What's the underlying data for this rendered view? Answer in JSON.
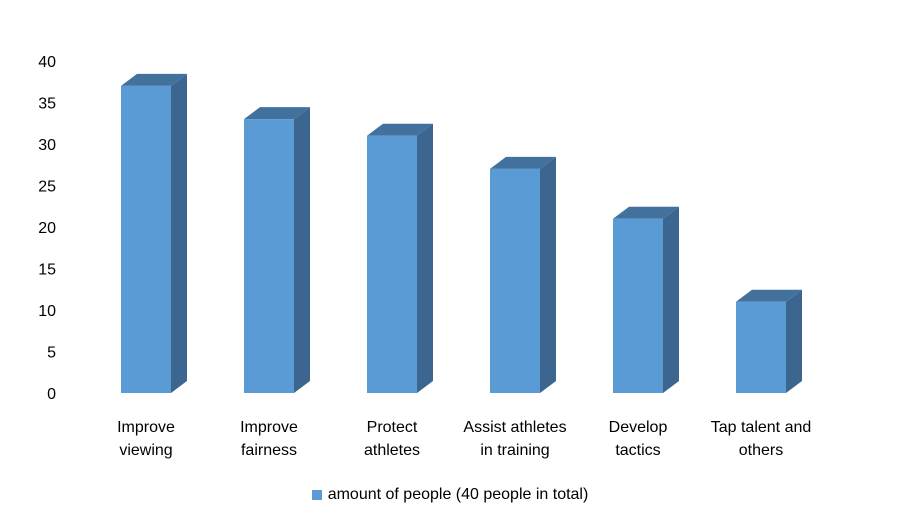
{
  "chart_data": {
    "type": "bar",
    "style": "3d-column",
    "categories": [
      [
        "Improve",
        "viewing"
      ],
      [
        "Improve",
        "fairness"
      ],
      [
        "Protect",
        "athletes"
      ],
      [
        "Assist athletes",
        "in training"
      ],
      [
        "Develop",
        "tactics"
      ],
      [
        "Tap talent and",
        "others"
      ]
    ],
    "series": [
      {
        "name": "amount of people (40 people in total)",
        "values": [
          37,
          33,
          31,
          27,
          21,
          11
        ]
      }
    ],
    "yticks": [
      0,
      5,
      10,
      15,
      20,
      25,
      30,
      35,
      40
    ],
    "ylim": [
      0,
      40
    ],
    "grid": false,
    "legend_position": "bottom",
    "colors": {
      "front": "#5B9BD5",
      "side": "#3C6690",
      "top": "#41719C"
    }
  }
}
